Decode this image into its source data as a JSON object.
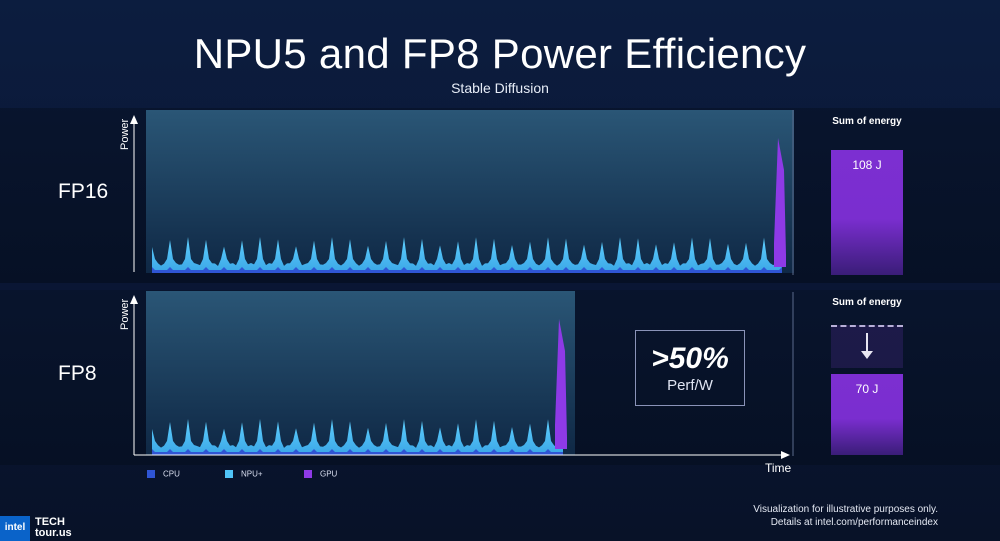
{
  "title": "NPU5 and FP8 Power Efficiency",
  "subtitle": "Stable Diffusion",
  "colors": {
    "cpu": "#2f55d4",
    "npu": "#4fc3f7",
    "gpu": "#8e3ae6",
    "background": "#0b1a3a"
  },
  "chart_data": {
    "type": "area",
    "x_axis_label": "Time",
    "y_axis_label": "Power",
    "legend": [
      "CPU",
      "NPU+",
      "GPU"
    ],
    "legend_placement": "bottom-left",
    "rows": [
      {
        "label": "FP16",
        "y_axis_label": "Power",
        "sum_of_energy_title": "Sum of energy",
        "energy_value": 108,
        "energy_label": "108 J",
        "duration_fraction": 1.0
      },
      {
        "label": "FP8",
        "y_axis_label": "Power",
        "sum_of_energy_title": "Sum of energy",
        "energy_value": 70,
        "energy_label": "70 J",
        "duration_fraction": 0.675
      }
    ]
  },
  "callout": {
    "value": ">50%",
    "label": "Perf/W"
  },
  "footnote": {
    "line1": "Visualization for illustrative purposes only.",
    "line2": "Details at intel.com/performanceindex"
  },
  "branding": {
    "logo": "intel",
    "event_line1": "TECH",
    "event_line2": "tour.us"
  }
}
